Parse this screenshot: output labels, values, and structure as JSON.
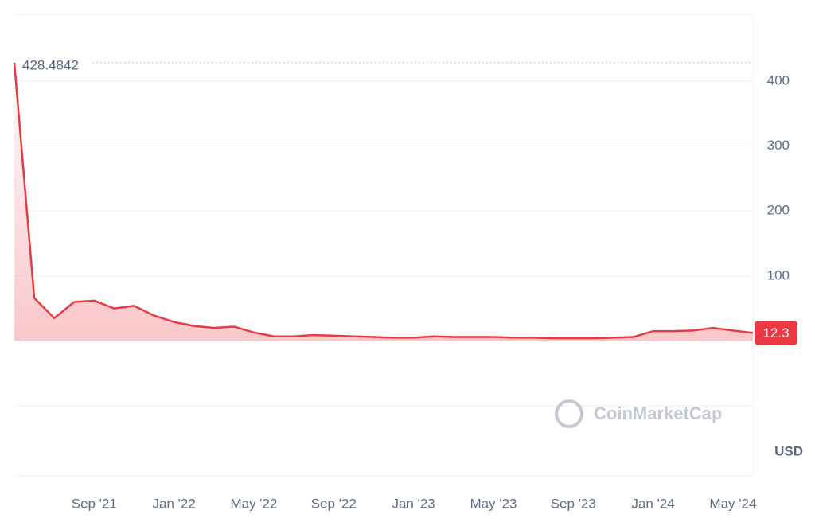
{
  "chart_data": {
    "type": "line",
    "x": [
      "2021-05",
      "2021-06",
      "2021-07",
      "2021-08",
      "2021-09",
      "2021-10",
      "2021-11",
      "2021-12",
      "2022-01",
      "2022-02",
      "2022-03",
      "2022-04",
      "2022-05",
      "2022-06",
      "2022-07",
      "2022-08",
      "2022-09",
      "2022-10",
      "2022-11",
      "2022-12",
      "2023-01",
      "2023-02",
      "2023-03",
      "2023-04",
      "2023-05",
      "2023-06",
      "2023-07",
      "2023-08",
      "2023-09",
      "2023-10",
      "2023-11",
      "2023-12",
      "2024-01",
      "2024-02",
      "2024-03",
      "2024-04",
      "2024-05",
      "2024-06"
    ],
    "series": [
      {
        "color": "#ea3943",
        "values": [
          428.4842,
          66,
          35,
          60,
          62,
          50,
          54,
          39,
          29,
          23,
          20,
          22,
          13,
          7,
          7,
          9,
          8,
          7,
          6,
          5,
          5,
          7,
          6,
          6,
          6,
          5,
          5,
          4,
          4,
          4,
          5,
          6,
          15,
          15,
          16,
          20,
          16,
          12.3
        ]
      }
    ],
    "ylim": [
      -100,
      503
    ],
    "yticks": [
      100,
      200,
      300,
      400
    ],
    "xticks": [
      {
        "value": "2021-09",
        "label": "Sep '21"
      },
      {
        "value": "2022-01",
        "label": "Jan '22"
      },
      {
        "value": "2022-05",
        "label": "May '22"
      },
      {
        "value": "2022-09",
        "label": "Sep '22"
      },
      {
        "value": "2023-01",
        "label": "Jan '23"
      },
      {
        "value": "2023-05",
        "label": "May '23"
      },
      {
        "value": "2023-09",
        "label": "Sep '23"
      },
      {
        "value": "2024-01",
        "label": "Jan '24"
      },
      {
        "value": "2024-05",
        "label": "May '24"
      }
    ],
    "grid": true,
    "watermark": "CoinMarketCap",
    "currency": "USD"
  }
}
